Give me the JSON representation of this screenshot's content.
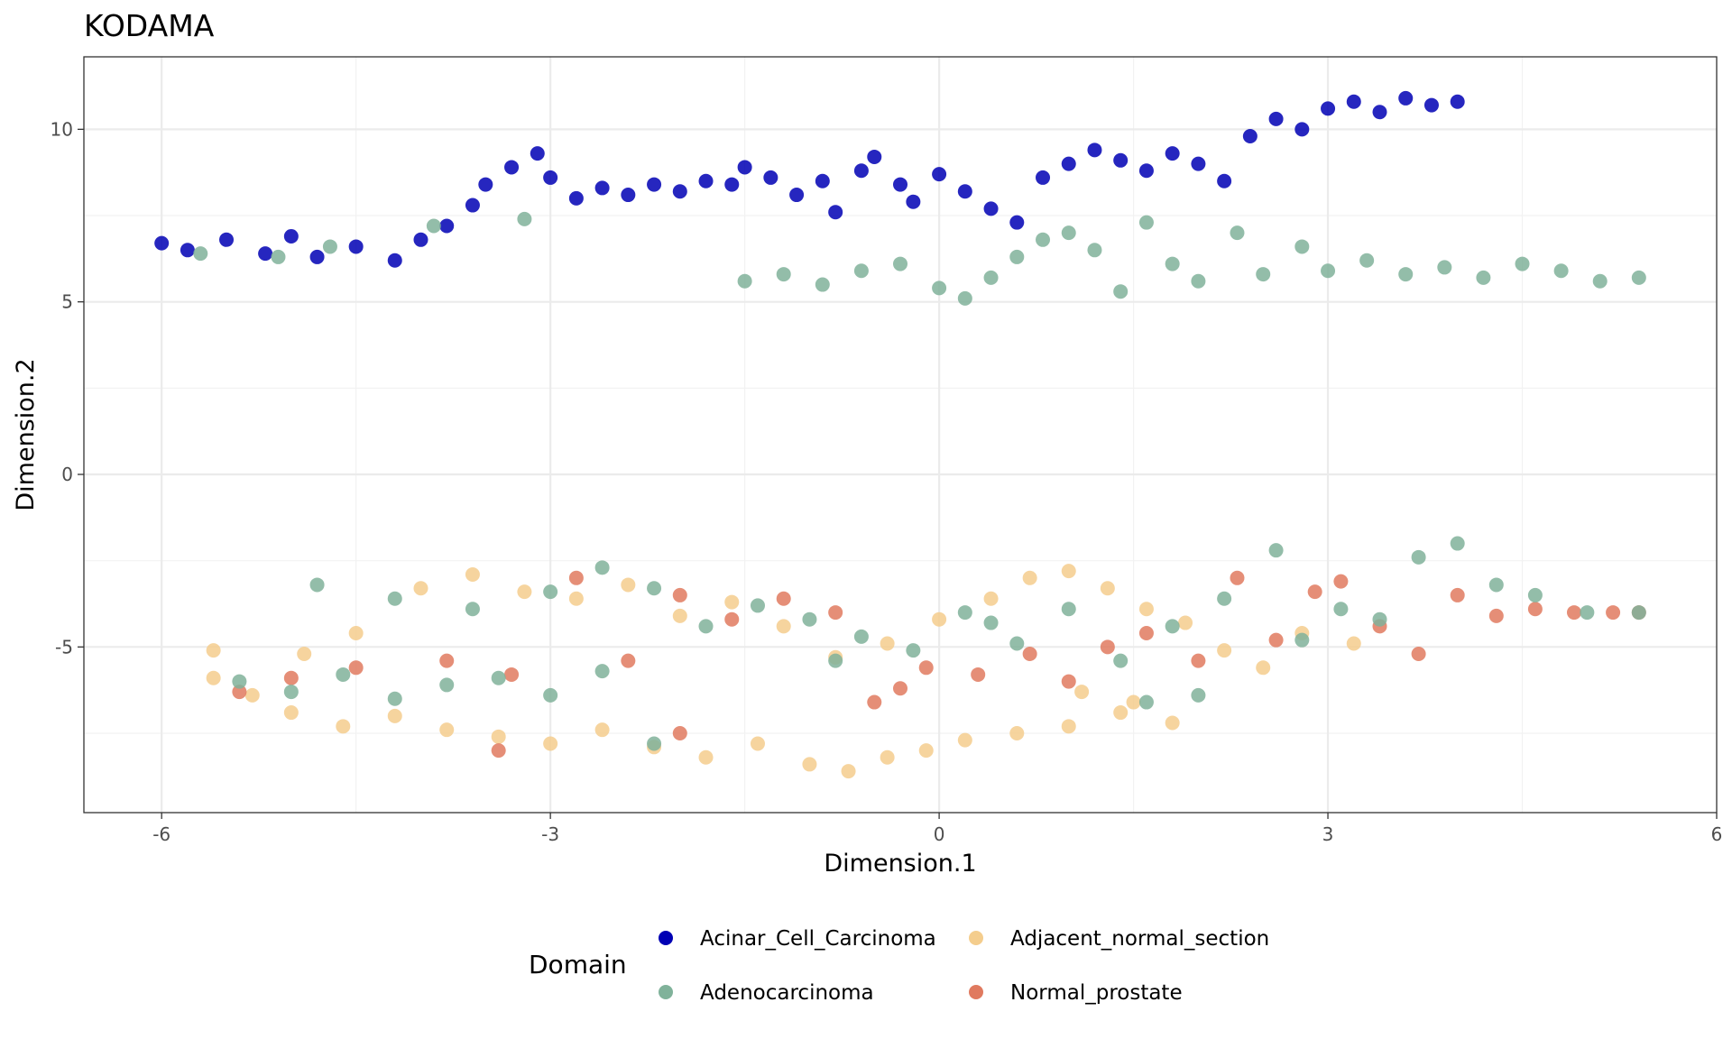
{
  "chart_data": {
    "type": "scatter",
    "title": "KODAMA",
    "xlabel": "Dimension.1",
    "ylabel": "Dimension.2",
    "xlim": [
      -6.6,
      6
    ],
    "ylim": [
      -9.8,
      12.1
    ],
    "x_ticks": [
      "-6",
      "-3",
      "0",
      "3",
      "6"
    ],
    "y_ticks": [
      "-5",
      "0",
      "5",
      "10"
    ],
    "grid": true,
    "legend": {
      "title": "Domain",
      "position": "bottom",
      "entries": [
        "Acinar_Cell_Carcinoma",
        "Adjacent_normal_section",
        "Adenocarcinoma",
        "Normal_prostate"
      ]
    },
    "series": [
      {
        "name": "Acinar_Cell_Carcinoma",
        "color": "#0000b4",
        "points": [
          [
            -6.0,
            6.7
          ],
          [
            -5.8,
            6.5
          ],
          [
            -5.5,
            6.8
          ],
          [
            -5.2,
            6.4
          ],
          [
            -5.0,
            6.9
          ],
          [
            -4.8,
            6.3
          ],
          [
            -4.5,
            6.6
          ],
          [
            -4.2,
            6.2
          ],
          [
            -4.0,
            6.8
          ],
          [
            -3.8,
            7.2
          ],
          [
            -3.6,
            7.8
          ],
          [
            -3.5,
            8.4
          ],
          [
            -3.3,
            8.9
          ],
          [
            -3.1,
            9.3
          ],
          [
            -3.0,
            8.6
          ],
          [
            -2.8,
            8.0
          ],
          [
            -2.6,
            8.3
          ],
          [
            -2.4,
            8.1
          ],
          [
            -2.2,
            8.4
          ],
          [
            -2.0,
            8.2
          ],
          [
            -1.8,
            8.5
          ],
          [
            -1.6,
            8.4
          ],
          [
            -1.5,
            8.9
          ],
          [
            -1.3,
            8.6
          ],
          [
            -1.1,
            8.1
          ],
          [
            -0.9,
            8.5
          ],
          [
            -0.8,
            7.6
          ],
          [
            -0.6,
            8.8
          ],
          [
            -0.5,
            9.2
          ],
          [
            -0.3,
            8.4
          ],
          [
            -0.2,
            7.9
          ],
          [
            0.0,
            8.7
          ],
          [
            0.2,
            8.2
          ],
          [
            0.4,
            7.7
          ],
          [
            0.6,
            7.3
          ],
          [
            0.8,
            8.6
          ],
          [
            1.0,
            9.0
          ],
          [
            1.2,
            9.4
          ],
          [
            1.4,
            9.1
          ],
          [
            1.6,
            8.8
          ],
          [
            1.8,
            9.3
          ],
          [
            2.0,
            9.0
          ],
          [
            2.2,
            8.5
          ],
          [
            2.4,
            9.8
          ],
          [
            2.6,
            10.3
          ],
          [
            2.8,
            10.0
          ],
          [
            3.0,
            10.6
          ],
          [
            3.2,
            10.8
          ],
          [
            3.4,
            10.5
          ],
          [
            3.6,
            10.9
          ],
          [
            3.8,
            10.7
          ],
          [
            4.0,
            10.8
          ]
        ]
      },
      {
        "name": "Adenocarcinoma",
        "color": "#80b29a",
        "points": [
          [
            -5.7,
            6.4
          ],
          [
            -5.1,
            6.3
          ],
          [
            -4.7,
            6.6
          ],
          [
            -3.9,
            7.2
          ],
          [
            -3.2,
            7.4
          ],
          [
            -1.5,
            5.6
          ],
          [
            -1.2,
            5.8
          ],
          [
            -0.9,
            5.5
          ],
          [
            -0.6,
            5.9
          ],
          [
            -0.3,
            6.1
          ],
          [
            0.0,
            5.4
          ],
          [
            0.2,
            5.1
          ],
          [
            0.4,
            5.7
          ],
          [
            0.6,
            6.3
          ],
          [
            0.8,
            6.8
          ],
          [
            1.0,
            7.0
          ],
          [
            1.2,
            6.5
          ],
          [
            1.4,
            5.3
          ],
          [
            1.6,
            7.3
          ],
          [
            1.8,
            6.1
          ],
          [
            2.0,
            5.6
          ],
          [
            2.3,
            7.0
          ],
          [
            2.5,
            5.8
          ],
          [
            2.8,
            6.6
          ],
          [
            3.0,
            5.9
          ],
          [
            3.3,
            6.2
          ],
          [
            3.6,
            5.8
          ],
          [
            3.9,
            6.0
          ],
          [
            4.2,
            5.7
          ],
          [
            4.5,
            6.1
          ],
          [
            4.8,
            5.9
          ],
          [
            5.1,
            5.6
          ],
          [
            5.4,
            5.7
          ],
          [
            -4.8,
            -3.2
          ],
          [
            -4.2,
            -3.6
          ],
          [
            -3.6,
            -3.9
          ],
          [
            -3.0,
            -3.4
          ],
          [
            -2.6,
            -2.7
          ],
          [
            -2.2,
            -3.3
          ],
          [
            -1.8,
            -4.4
          ],
          [
            -1.4,
            -3.8
          ],
          [
            -1.0,
            -4.2
          ],
          [
            -0.6,
            -4.7
          ],
          [
            -0.2,
            -5.1
          ],
          [
            0.2,
            -4.0
          ],
          [
            0.6,
            -4.9
          ],
          [
            1.0,
            -3.9
          ],
          [
            1.4,
            -5.4
          ],
          [
            1.8,
            -4.4
          ],
          [
            2.2,
            -3.6
          ],
          [
            2.6,
            -2.2
          ],
          [
            2.8,
            -4.8
          ],
          [
            3.1,
            -3.9
          ],
          [
            3.4,
            -4.2
          ],
          [
            3.7,
            -2.4
          ],
          [
            4.0,
            -2.0
          ],
          [
            4.3,
            -3.2
          ],
          [
            4.6,
            -3.5
          ],
          [
            5.0,
            -4.0
          ],
          [
            5.4,
            -4.0
          ],
          [
            -5.4,
            -6.0
          ],
          [
            -5.0,
            -6.3
          ],
          [
            -4.6,
            -5.8
          ],
          [
            -4.2,
            -6.5
          ],
          [
            -3.8,
            -6.1
          ],
          [
            -3.4,
            -5.9
          ],
          [
            -3.0,
            -6.4
          ],
          [
            -2.6,
            -5.7
          ],
          [
            -2.2,
            -7.8
          ],
          [
            -0.8,
            -5.4
          ],
          [
            0.4,
            -4.3
          ],
          [
            1.6,
            -6.6
          ],
          [
            2.0,
            -6.4
          ]
        ]
      },
      {
        "name": "Adjacent_normal_section",
        "color": "#f4cd8d",
        "points": [
          [
            -5.6,
            -5.9
          ],
          [
            -5.3,
            -6.4
          ],
          [
            -5.0,
            -6.9
          ],
          [
            -4.6,
            -7.3
          ],
          [
            -4.2,
            -7.0
          ],
          [
            -3.8,
            -7.4
          ],
          [
            -3.4,
            -7.6
          ],
          [
            -3.0,
            -7.8
          ],
          [
            -2.6,
            -7.4
          ],
          [
            -2.2,
            -7.9
          ],
          [
            -1.8,
            -8.2
          ],
          [
            -1.4,
            -7.8
          ],
          [
            -1.0,
            -8.4
          ],
          [
            -0.7,
            -8.6
          ],
          [
            -0.4,
            -8.2
          ],
          [
            -0.1,
            -8.0
          ],
          [
            0.2,
            -7.7
          ],
          [
            0.6,
            -7.5
          ],
          [
            1.0,
            -7.3
          ],
          [
            1.4,
            -6.9
          ],
          [
            1.8,
            -7.2
          ],
          [
            -4.5,
            -4.6
          ],
          [
            -4.0,
            -3.3
          ],
          [
            -3.6,
            -2.9
          ],
          [
            -3.2,
            -3.4
          ],
          [
            -2.8,
            -3.6
          ],
          [
            -2.4,
            -3.2
          ],
          [
            -2.0,
            -4.1
          ],
          [
            -1.6,
            -3.7
          ],
          [
            -1.2,
            -4.4
          ],
          [
            -0.8,
            -5.3
          ],
          [
            -0.4,
            -4.9
          ],
          [
            0.0,
            -4.2
          ],
          [
            0.4,
            -3.6
          ],
          [
            0.7,
            -3.0
          ],
          [
            1.0,
            -2.8
          ],
          [
            1.3,
            -3.3
          ],
          [
            1.6,
            -3.9
          ],
          [
            1.9,
            -4.3
          ],
          [
            2.2,
            -5.1
          ],
          [
            2.5,
            -5.6
          ],
          [
            2.8,
            -4.6
          ],
          [
            3.2,
            -4.9
          ],
          [
            1.1,
            -6.3
          ],
          [
            1.5,
            -6.6
          ],
          [
            -5.6,
            -5.1
          ],
          [
            -4.9,
            -5.2
          ]
        ]
      },
      {
        "name": "Normal_prostate",
        "color": "#e07a5f",
        "points": [
          [
            -5.4,
            -6.3
          ],
          [
            -5.0,
            -5.9
          ],
          [
            -4.5,
            -5.6
          ],
          [
            -3.8,
            -5.4
          ],
          [
            -3.3,
            -5.8
          ],
          [
            -2.8,
            -3.0
          ],
          [
            -2.4,
            -5.4
          ],
          [
            -2.0,
            -3.5
          ],
          [
            -1.6,
            -4.2
          ],
          [
            -1.2,
            -3.6
          ],
          [
            -0.8,
            -4.0
          ],
          [
            -0.5,
            -6.6
          ],
          [
            -0.3,
            -6.2
          ],
          [
            -0.1,
            -5.6
          ],
          [
            0.3,
            -5.8
          ],
          [
            0.7,
            -5.2
          ],
          [
            1.0,
            -6.0
          ],
          [
            1.3,
            -5.0
          ],
          [
            1.6,
            -4.6
          ],
          [
            2.0,
            -5.4
          ],
          [
            2.3,
            -3.0
          ],
          [
            2.6,
            -4.8
          ],
          [
            2.9,
            -3.4
          ],
          [
            3.1,
            -3.1
          ],
          [
            3.4,
            -4.4
          ],
          [
            3.7,
            -5.2
          ],
          [
            4.0,
            -3.5
          ],
          [
            4.3,
            -4.1
          ],
          [
            4.6,
            -3.9
          ],
          [
            4.9,
            -4.0
          ],
          [
            5.2,
            -4.0
          ],
          [
            5.4,
            -4.0
          ],
          [
            -3.4,
            -8.0
          ],
          [
            -2.0,
            -7.5
          ]
        ]
      }
    ]
  }
}
